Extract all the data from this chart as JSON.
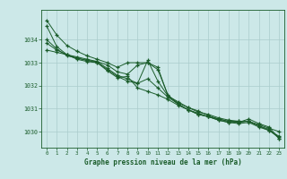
{
  "title": "Graphe pression niveau de la mer (hPa)",
  "background_color": "#cce8e8",
  "grid_color": "#aacccc",
  "line_color": "#1a5c2a",
  "marker_color": "#1a5c2a",
  "xlim": [
    -0.5,
    23.5
  ],
  "ylim": [
    1029.3,
    1035.3
  ],
  "xticks": [
    0,
    1,
    2,
    3,
    4,
    5,
    6,
    7,
    8,
    9,
    10,
    11,
    12,
    13,
    14,
    15,
    16,
    17,
    18,
    19,
    20,
    21,
    22,
    23
  ],
  "yticks": [
    1030,
    1031,
    1032,
    1033,
    1034
  ],
  "series": [
    [
      1034.85,
      1034.2,
      1033.75,
      1033.5,
      1033.3,
      1033.15,
      1033.0,
      1032.8,
      1033.0,
      1033.0,
      1033.0,
      1032.8,
      1031.55,
      1031.3,
      1031.05,
      1030.85,
      1030.75,
      1030.6,
      1030.5,
      1030.45,
      1030.45,
      1030.25,
      1030.05,
      1029.75
    ],
    [
      1034.0,
      1033.6,
      1033.3,
      1033.2,
      1033.1,
      1033.05,
      1032.9,
      1032.6,
      1032.5,
      1032.9,
      1033.0,
      1032.7,
      1031.6,
      1031.2,
      1030.95,
      1030.8,
      1030.65,
      1030.55,
      1030.45,
      1030.45,
      1030.45,
      1030.3,
      1030.15,
      1030.0
    ],
    [
      1033.55,
      1033.45,
      1033.35,
      1033.25,
      1033.15,
      1033.05,
      1032.75,
      1032.45,
      1032.3,
      1032.1,
      1032.3,
      1031.9,
      1031.5,
      1031.2,
      1030.95,
      1030.75,
      1030.65,
      1030.5,
      1030.4,
      1030.35,
      1030.4,
      1030.2,
      1030.05,
      1029.8
    ],
    [
      1034.6,
      1033.7,
      1033.35,
      1033.15,
      1033.05,
      1033.0,
      1032.7,
      1032.4,
      1032.2,
      1032.1,
      1033.1,
      1032.2,
      1031.55,
      1031.25,
      1031.05,
      1030.9,
      1030.7,
      1030.55,
      1030.45,
      1030.4,
      1030.55,
      1030.35,
      1030.2,
      1029.7
    ],
    [
      1033.85,
      1033.55,
      1033.35,
      1033.2,
      1033.1,
      1033.0,
      1032.65,
      1032.35,
      1032.4,
      1031.9,
      1031.75,
      1031.6,
      1031.4,
      1031.15,
      1030.95,
      1030.75,
      1030.65,
      1030.5,
      1030.4,
      1030.4,
      1030.45,
      1030.25,
      1030.1,
      1029.7
    ]
  ]
}
